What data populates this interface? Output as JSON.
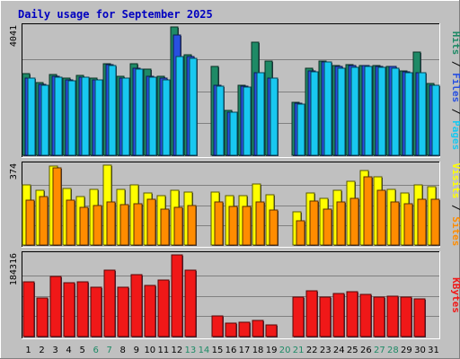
{
  "chart_data": {
    "type": "bar",
    "title": "Daily usage for September 2025",
    "categories": [
      "1",
      "2",
      "3",
      "4",
      "5",
      "6",
      "7",
      "8",
      "9",
      "10",
      "11",
      "12",
      "13",
      "14",
      "15",
      "16",
      "17",
      "18",
      "19",
      "20",
      "21",
      "22",
      "23",
      "24",
      "25",
      "26",
      "27",
      "28",
      "29",
      "30",
      "31"
    ],
    "weekend_days": [
      "6",
      "7",
      "13",
      "14",
      "20",
      "21",
      "27",
      "28"
    ],
    "panels": [
      {
        "id": "hits-files-pages",
        "ymax_label": "4041",
        "ylim": [
          0,
          4041
        ],
        "axis_label": [
          "Pages",
          "Files",
          "Hits"
        ],
        "series": [
          {
            "name": "Hits",
            "color": "#1e8a66",
            "values": [
              2560,
              2300,
              2540,
              2430,
              2520,
              2440,
              2870,
              2480,
              2880,
              2700,
              2480,
              4041,
              3170,
              0,
              2800,
              1410,
              2200,
              3550,
              2960,
              0,
              1670,
              2740,
              2970,
              2830,
              2850,
              2830,
              2840,
              2810,
              2650,
              3240,
              2260
            ]
          },
          {
            "name": "Files",
            "color": "#2850e0",
            "values": [
              2440,
              2240,
              2490,
              2370,
              2450,
              2380,
              2850,
              2430,
              2730,
              2480,
              2440,
              3780,
              3120,
              0,
              2200,
              1350,
              2170,
              2610,
              2430,
              0,
              1640,
              2660,
              2950,
              2790,
              2840,
              2820,
              2800,
              2790,
              2630,
              2600,
              2200
            ]
          },
          {
            "name": "Pages",
            "color": "#18c8f0",
            "values": [
              2440,
              2210,
              2450,
              2350,
              2450,
              2360,
              2820,
              2420,
              2700,
              2450,
              2380,
              3120,
              3060,
              0,
              2180,
              1350,
              2140,
              2610,
              2420,
              0,
              1620,
              2640,
              2940,
              2740,
              2780,
              2790,
              2770,
              2750,
              2600,
              2590,
              2200
            ]
          }
        ]
      },
      {
        "id": "visits-sites",
        "ymax_label": "374",
        "ylim": [
          0,
          374
        ],
        "axis_label": [
          "Sites",
          "Visits"
        ],
        "series": [
          {
            "name": "Visits",
            "color": "#ffff00",
            "values": [
              280,
              255,
              370,
              265,
              225,
              260,
              374,
              260,
              280,
              245,
              230,
              255,
              250,
              0,
              250,
              230,
              230,
              285,
              235,
              0,
              155,
              245,
              220,
              255,
              300,
              350,
              320,
              260,
              245,
              280,
              275
            ]
          },
          {
            "name": "Sites",
            "color": "#ff8c00",
            "values": [
              210,
              225,
              360,
              210,
              175,
              185,
              200,
              190,
              195,
              215,
              170,
              175,
              185,
              0,
              200,
              180,
              180,
              200,
              165,
              0,
              115,
              205,
              170,
              200,
              220,
              320,
              255,
              200,
              195,
              215,
              215
            ]
          }
        ]
      },
      {
        "id": "kbytes",
        "ymax_label": "184316",
        "ylim": [
          0,
          184316
        ],
        "axis_label": [
          "KBytes"
        ],
        "series": [
          {
            "name": "KBytes",
            "color": "#f01818",
            "values": [
              123000,
              88000,
              136000,
              122000,
              124000,
              112000,
              150000,
              111000,
              139000,
              116000,
              127000,
              184316,
              149000,
              0,
              47000,
              31000,
              33000,
              37000,
              27000,
              0,
              90000,
              103000,
              90000,
              98000,
              101000,
              95000,
              90000,
              91000,
              90000,
              85000,
              0
            ]
          }
        ]
      }
    ]
  }
}
